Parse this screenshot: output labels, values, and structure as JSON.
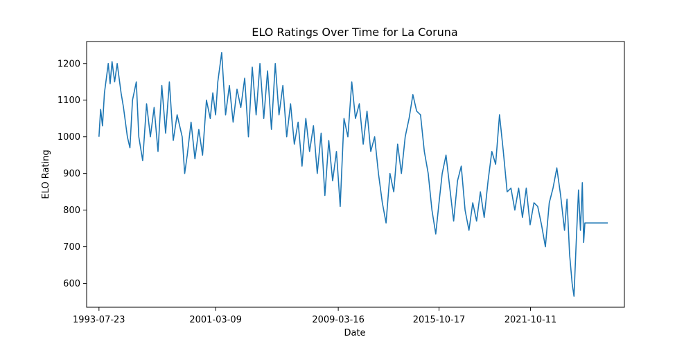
{
  "chart_data": {
    "type": "line",
    "title": "ELO Ratings Over Time for La Coruna",
    "xlabel": "Date",
    "ylabel": "ELO Rating",
    "x_ticks": [
      "1993-07-23",
      "2001-03-09",
      "2009-03-16",
      "2015-10-17",
      "2021-10-11"
    ],
    "y_ticks": [
      600,
      700,
      800,
      900,
      1000,
      1100,
      1200
    ],
    "xlim": [
      "1992-10-01",
      "2027-12-01"
    ],
    "ylim": [
      535,
      1260
    ],
    "grid": false,
    "legend": "none",
    "series": [
      {
        "color": "#1f77b4",
        "points": [
          [
            "1993-07-23",
            1000
          ],
          [
            "1993-09-01",
            1075
          ],
          [
            "1993-10-15",
            1030
          ],
          [
            "1993-12-01",
            1120
          ],
          [
            "1994-01-15",
            1160
          ],
          [
            "1994-03-01",
            1200
          ],
          [
            "1994-04-15",
            1145
          ],
          [
            "1994-06-01",
            1205
          ],
          [
            "1994-08-01",
            1150
          ],
          [
            "1994-10-01",
            1200
          ],
          [
            "1995-01-01",
            1120
          ],
          [
            "1995-03-01",
            1080
          ],
          [
            "1995-06-01",
            1000
          ],
          [
            "1995-08-01",
            970
          ],
          [
            "1995-10-01",
            1100
          ],
          [
            "1996-01-01",
            1150
          ],
          [
            "1996-03-01",
            1000
          ],
          [
            "1996-06-01",
            935
          ],
          [
            "1996-09-01",
            1090
          ],
          [
            "1996-12-01",
            1000
          ],
          [
            "1997-03-01",
            1080
          ],
          [
            "1997-06-01",
            960
          ],
          [
            "1997-09-01",
            1140
          ],
          [
            "1997-12-01",
            1010
          ],
          [
            "1998-03-01",
            1150
          ],
          [
            "1998-06-01",
            990
          ],
          [
            "1998-09-01",
            1060
          ],
          [
            "1999-01-01",
            1000
          ],
          [
            "1999-03-01",
            900
          ],
          [
            "1999-05-01",
            950
          ],
          [
            "1999-08-01",
            1040
          ],
          [
            "1999-11-01",
            940
          ],
          [
            "2000-02-01",
            1020
          ],
          [
            "2000-05-01",
            950
          ],
          [
            "2000-08-01",
            1100
          ],
          [
            "2000-11-01",
            1050
          ],
          [
            "2001-01-01",
            1120
          ],
          [
            "2001-03-09",
            1060
          ],
          [
            "2001-05-01",
            1150
          ],
          [
            "2001-08-01",
            1230
          ],
          [
            "2001-11-01",
            1060
          ],
          [
            "2002-02-01",
            1140
          ],
          [
            "2002-05-01",
            1040
          ],
          [
            "2002-08-01",
            1130
          ],
          [
            "2002-11-01",
            1080
          ],
          [
            "2003-02-01",
            1160
          ],
          [
            "2003-05-01",
            1000
          ],
          [
            "2003-08-01",
            1190
          ],
          [
            "2003-11-01",
            1060
          ],
          [
            "2004-02-01",
            1200
          ],
          [
            "2004-05-01",
            1050
          ],
          [
            "2004-08-01",
            1180
          ],
          [
            "2004-11-01",
            1020
          ],
          [
            "2005-02-01",
            1200
          ],
          [
            "2005-05-01",
            1060
          ],
          [
            "2005-08-01",
            1140
          ],
          [
            "2005-11-01",
            1000
          ],
          [
            "2006-02-01",
            1090
          ],
          [
            "2006-05-01",
            980
          ],
          [
            "2006-08-01",
            1040
          ],
          [
            "2006-11-01",
            920
          ],
          [
            "2007-02-01",
            1050
          ],
          [
            "2007-05-01",
            960
          ],
          [
            "2007-08-01",
            1030
          ],
          [
            "2007-11-01",
            900
          ],
          [
            "2008-02-01",
            1010
          ],
          [
            "2008-05-01",
            840
          ],
          [
            "2008-08-01",
            990
          ],
          [
            "2008-11-01",
            880
          ],
          [
            "2009-02-01",
            960
          ],
          [
            "2009-05-01",
            810
          ],
          [
            "2009-08-01",
            1050
          ],
          [
            "2009-11-01",
            1000
          ],
          [
            "2010-02-01",
            1150
          ],
          [
            "2010-05-01",
            1050
          ],
          [
            "2010-08-01",
            1090
          ],
          [
            "2010-11-01",
            980
          ],
          [
            "2011-02-01",
            1070
          ],
          [
            "2011-05-01",
            960
          ],
          [
            "2011-08-01",
            1000
          ],
          [
            "2011-11-01",
            900
          ],
          [
            "2012-02-01",
            820
          ],
          [
            "2012-05-01",
            765
          ],
          [
            "2012-08-01",
            900
          ],
          [
            "2012-11-01",
            850
          ],
          [
            "2013-02-01",
            980
          ],
          [
            "2013-05-01",
            900
          ],
          [
            "2013-08-01",
            1000
          ],
          [
            "2013-11-01",
            1050
          ],
          [
            "2014-02-01",
            1115
          ],
          [
            "2014-05-01",
            1070
          ],
          [
            "2014-08-01",
            1060
          ],
          [
            "2014-11-01",
            960
          ],
          [
            "2015-02-01",
            900
          ],
          [
            "2015-05-01",
            800
          ],
          [
            "2015-08-01",
            735
          ],
          [
            "2015-10-17",
            820
          ],
          [
            "2016-01-01",
            900
          ],
          [
            "2016-04-01",
            950
          ],
          [
            "2016-07-01",
            860
          ],
          [
            "2016-10-01",
            770
          ],
          [
            "2017-01-01",
            880
          ],
          [
            "2017-04-01",
            920
          ],
          [
            "2017-07-01",
            800
          ],
          [
            "2017-10-01",
            745
          ],
          [
            "2018-01-01",
            820
          ],
          [
            "2018-04-01",
            770
          ],
          [
            "2018-07-01",
            850
          ],
          [
            "2018-10-01",
            780
          ],
          [
            "2019-01-01",
            880
          ],
          [
            "2019-04-01",
            960
          ],
          [
            "2019-07-01",
            925
          ],
          [
            "2019-10-01",
            1060
          ],
          [
            "2020-01-01",
            960
          ],
          [
            "2020-04-01",
            850
          ],
          [
            "2020-07-01",
            860
          ],
          [
            "2020-10-01",
            800
          ],
          [
            "2021-01-01",
            860
          ],
          [
            "2021-04-01",
            780
          ],
          [
            "2021-07-01",
            860
          ],
          [
            "2021-10-01",
            760
          ],
          [
            "2022-01-01",
            820
          ],
          [
            "2022-04-01",
            810
          ],
          [
            "2022-07-01",
            760
          ],
          [
            "2022-10-01",
            700
          ],
          [
            "2023-01-01",
            820
          ],
          [
            "2023-04-01",
            860
          ],
          [
            "2023-07-01",
            915
          ],
          [
            "2023-10-01",
            840
          ],
          [
            "2024-01-01",
            745
          ],
          [
            "2024-03-01",
            830
          ],
          [
            "2024-05-01",
            680
          ],
          [
            "2024-07-01",
            600
          ],
          [
            "2024-08-15",
            565
          ],
          [
            "2024-10-01",
            700
          ],
          [
            "2024-12-01",
            855
          ],
          [
            "2025-01-15",
            745
          ],
          [
            "2025-03-01",
            875
          ],
          [
            "2025-04-01",
            712
          ],
          [
            "2025-05-01",
            765
          ],
          [
            "2026-11-01",
            765
          ]
        ]
      }
    ]
  }
}
